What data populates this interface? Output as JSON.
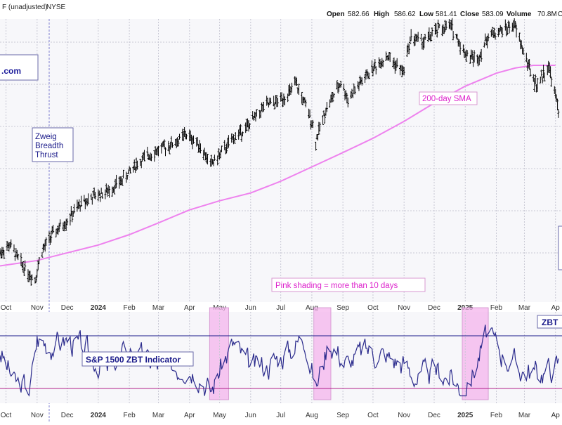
{
  "header": {
    "ticker_fragment": "F (unadjusted)",
    "exchange": "NYSE",
    "open_label": "Open",
    "open_value": "582.66",
    "high_label": "High",
    "high_value": "586.62",
    "low_label": "Low",
    "low_value": "581.41",
    "close_label": "Close",
    "close_value": "583.09",
    "volume_label": "Volume",
    "volume_value": "70.8M",
    "edge_fragment": "C"
  },
  "annotations": {
    "url_fragment": ".com",
    "zweig_line1": "Zweig",
    "zweig_line2": "Breadth",
    "zweig_line3": "Thrust",
    "sma_label": "200-day SMA",
    "pink_note": "Pink shading = more than 10 days",
    "indicator_label": "S&P 1500 ZBT Indicator",
    "zbt_tag": "ZBT"
  },
  "colors": {
    "price_bars": "#000000",
    "sma_line": "#ee82ee",
    "indicator_line": "#2a2a8c",
    "upper_threshold": "#1a1a8a",
    "lower_threshold": "#b0208a",
    "shading": "#f4b4ec",
    "label_text": "#1a1a8a",
    "sma_text": "#dd22cc",
    "grid": "#c8c8d4",
    "panel_bg": "#f7f7fa"
  },
  "chart_data": [
    {
      "type": "line",
      "panel": "price",
      "x_tick_labels": [
        "Oct",
        "Nov",
        "Dec",
        "2024",
        "Feb",
        "Mar",
        "Apr",
        "May",
        "Jun",
        "Jul",
        "Aug",
        "Sep",
        "Oct",
        "Nov",
        "Dec",
        "2025",
        "Feb",
        "Mar",
        "Ap"
      ],
      "series": [
        {
          "name": "price",
          "style": "ohlc-bars",
          "x": [
            "2023-09-25",
            "2023-10-05",
            "2023-10-15",
            "2023-10-25",
            "2023-10-30",
            "2023-11-05",
            "2023-11-15",
            "2023-11-30",
            "2023-12-15",
            "2023-12-29",
            "2024-01-10",
            "2024-01-25",
            "2024-02-08",
            "2024-02-22",
            "2024-03-07",
            "2024-03-21",
            "2024-03-28",
            "2024-04-10",
            "2024-04-22",
            "2024-05-01",
            "2024-05-15",
            "2024-05-30",
            "2024-06-15",
            "2024-06-28",
            "2024-07-10",
            "2024-07-16",
            "2024-07-24",
            "2024-08-01",
            "2024-08-05",
            "2024-08-15",
            "2024-08-30",
            "2024-09-06",
            "2024-09-18",
            "2024-09-30",
            "2024-10-15",
            "2024-10-31",
            "2024-11-08",
            "2024-11-20",
            "2024-12-06",
            "2024-12-18",
            "2024-12-31",
            "2025-01-13",
            "2025-01-24",
            "2025-02-07",
            "2025-02-19",
            "2025-03-03",
            "2025-03-13",
            "2025-03-25",
            "2025-04-04"
          ],
          "y": [
            432,
            438,
            425,
            415,
            412,
            432,
            445,
            456,
            470,
            476,
            479,
            488,
            500,
            508,
            513,
            518,
            523,
            516,
            500,
            507,
            520,
            530,
            545,
            548,
            555,
            562,
            548,
            533,
            518,
            542,
            563,
            550,
            562,
            573,
            583,
            571,
            598,
            594,
            604,
            606,
            586,
            580,
            599,
            603,
            607,
            580,
            560,
            576,
            542
          ]
        },
        {
          "name": "200-day SMA",
          "x": [
            "2023-09-25",
            "2023-10-31",
            "2023-12-01",
            "2024-01-01",
            "2024-02-01",
            "2024-03-01",
            "2024-04-01",
            "2024-05-01",
            "2024-06-01",
            "2024-07-01",
            "2024-08-01",
            "2024-09-01",
            "2024-10-01",
            "2024-11-01",
            "2024-12-01",
            "2025-01-01",
            "2025-02-01",
            "2025-02-20",
            "2025-03-10",
            "2025-04-01"
          ],
          "y": [
            422,
            426,
            432,
            438,
            446,
            455,
            465,
            472,
            478,
            487,
            498,
            509,
            520,
            533,
            547,
            560,
            570,
            574,
            576,
            576
          ]
        }
      ]
    },
    {
      "type": "line",
      "panel": "indicator",
      "x_tick_labels": [
        "Oct",
        "Nov",
        "Dec",
        "2024",
        "Feb",
        "Mar",
        "Apr",
        "May",
        "Jun",
        "Jul",
        "Aug",
        "Sep",
        "Oct",
        "Nov",
        "Dec",
        "2025",
        "Feb",
        "Mar",
        "Ap"
      ],
      "thresholds": [
        0.615,
        0.4
      ],
      "shaded_ranges": [
        [
          "2024-04-21",
          "2024-05-10"
        ],
        [
          "2024-08-03",
          "2024-08-20"
        ],
        [
          "2024-12-29",
          "2025-01-24"
        ]
      ],
      "series": [
        {
          "name": "S&P 1500 ZBT Indicator",
          "x": [
            "2023-09-25",
            "2023-10-10",
            "2023-10-25",
            "2023-11-01",
            "2023-11-15",
            "2023-12-01",
            "2023-12-20",
            "2024-01-10",
            "2024-02-01",
            "2024-02-20",
            "2024-03-10",
            "2024-03-30",
            "2024-04-12",
            "2024-04-22",
            "2024-05-03",
            "2024-05-15",
            "2024-06-01",
            "2024-06-20",
            "2024-07-10",
            "2024-07-25",
            "2024-08-05",
            "2024-08-18",
            "2024-09-05",
            "2024-09-25",
            "2024-10-15",
            "2024-11-01",
            "2024-11-15",
            "2024-12-05",
            "2024-12-20",
            "2024-12-31",
            "2025-01-10",
            "2025-01-22",
            "2025-02-05",
            "2025-02-25",
            "2025-03-15",
            "2025-04-04"
          ],
          "y": [
            0.55,
            0.42,
            0.4,
            0.6,
            0.58,
            0.6,
            0.55,
            0.47,
            0.56,
            0.51,
            0.48,
            0.5,
            0.46,
            0.38,
            0.5,
            0.58,
            0.48,
            0.5,
            0.56,
            0.62,
            0.4,
            0.6,
            0.5,
            0.56,
            0.53,
            0.5,
            0.44,
            0.47,
            0.44,
            0.38,
            0.48,
            0.62,
            0.55,
            0.48,
            0.46,
            0.5
          ]
        }
      ]
    }
  ]
}
